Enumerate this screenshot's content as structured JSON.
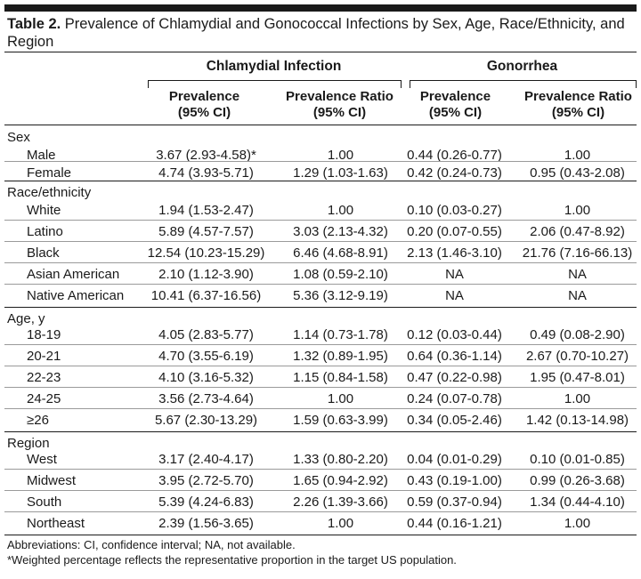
{
  "title": {
    "label": "Table 2.",
    "text": " Prevalence of Chlamydial and Gonococcal Infections by Sex, Age, Race/Ethnicity, and Region"
  },
  "groups": {
    "chlamydia": "Chlamydial Infection",
    "gonorrhea": "Gonorrhea"
  },
  "columns": {
    "c1_line1": "Prevalence",
    "c1_line2": "(95% CI)",
    "c2_line1": "Prevalence Ratio",
    "c2_line2": "(95% CI)",
    "c3_line1": "Prevalence",
    "c3_line2": "(95% CI)",
    "c4_line1": "Prevalence Ratio",
    "c4_line2": "(95% CI)"
  },
  "sections": [
    {
      "name": "Sex",
      "rows": [
        {
          "label": "Male",
          "values": [
            "3.67 (2.93-4.58)*",
            "1.00",
            "0.44 (0.26-0.77)",
            "1.00"
          ]
        },
        {
          "label": "Female",
          "values": [
            "4.74 (3.93-5.71)",
            "1.29 (1.03-1.63)",
            "0.42 (0.24-0.73)",
            "0.95 (0.43-2.08)"
          ]
        }
      ]
    },
    {
      "name": "Race/ethnicity",
      "rows": [
        {
          "label": "White",
          "values": [
            "1.94 (1.53-2.47)",
            "1.00",
            "0.10 (0.03-0.27)",
            "1.00"
          ]
        },
        {
          "label": "Latino",
          "values": [
            "5.89 (4.57-7.57)",
            "3.03 (2.13-4.32)",
            "0.20 (0.07-0.55)",
            "2.06 (0.47-8.92)"
          ]
        },
        {
          "label": "Black",
          "values": [
            "12.54 (10.23-15.29)",
            "6.46 (4.68-8.91)",
            "2.13 (1.46-3.10)",
            "21.76 (7.16-66.13)"
          ]
        },
        {
          "label": "Asian American",
          "values": [
            "2.10 (1.12-3.90)",
            "1.08 (0.59-2.10)",
            "NA",
            "NA"
          ]
        },
        {
          "label": "Native American",
          "values": [
            "10.41 (6.37-16.56)",
            "5.36 (3.12-9.19)",
            "NA",
            "NA"
          ]
        }
      ]
    },
    {
      "name": "Age, y",
      "rows": [
        {
          "label": "18-19",
          "values": [
            "4.05 (2.83-5.77)",
            "1.14 (0.73-1.78)",
            "0.12 (0.03-0.44)",
            "0.49 (0.08-2.90)"
          ]
        },
        {
          "label": "20-21",
          "values": [
            "4.70 (3.55-6.19)",
            "1.32 (0.89-1.95)",
            "0.64 (0.36-1.14)",
            "2.67 (0.70-10.27)"
          ]
        },
        {
          "label": "22-23",
          "values": [
            "4.10 (3.16-5.32)",
            "1.15 (0.84-1.58)",
            "0.47 (0.22-0.98)",
            "1.95 (0.47-8.01)"
          ]
        },
        {
          "label": "24-25",
          "values": [
            "3.56 (2.73-4.64)",
            "1.00",
            "0.24 (0.07-0.78)",
            "1.00"
          ]
        },
        {
          "label": "≥26",
          "values": [
            "5.67 (2.30-13.29)",
            "1.59 (0.63-3.99)",
            "0.34 (0.05-2.46)",
            "1.42 (0.13-14.98)"
          ]
        }
      ]
    },
    {
      "name": "Region",
      "rows": [
        {
          "label": "West",
          "values": [
            "3.17 (2.40-4.17)",
            "1.33 (0.80-2.20)",
            "0.04 (0.01-0.29)",
            "0.10 (0.01-0.85)"
          ]
        },
        {
          "label": "Midwest",
          "values": [
            "3.95 (2.72-5.70)",
            "1.65 (0.94-2.92)",
            "0.43 (0.19-1.00)",
            "0.99 (0.26-3.68)"
          ]
        },
        {
          "label": "South",
          "values": [
            "5.39 (4.24-6.83)",
            "2.26 (1.39-3.66)",
            "0.59 (0.37-0.94)",
            "1.34 (0.44-4.10)"
          ]
        },
        {
          "label": "Northeast",
          "values": [
            "2.39 (1.56-3.65)",
            "1.00",
            "0.44 (0.16-1.21)",
            "1.00"
          ]
        }
      ]
    }
  ],
  "footnotes": {
    "abbrev": "Abbreviations: CI, confidence interval; NA, not available.",
    "weighted": "*Weighted percentage reflects the representative proportion in the target US population."
  }
}
